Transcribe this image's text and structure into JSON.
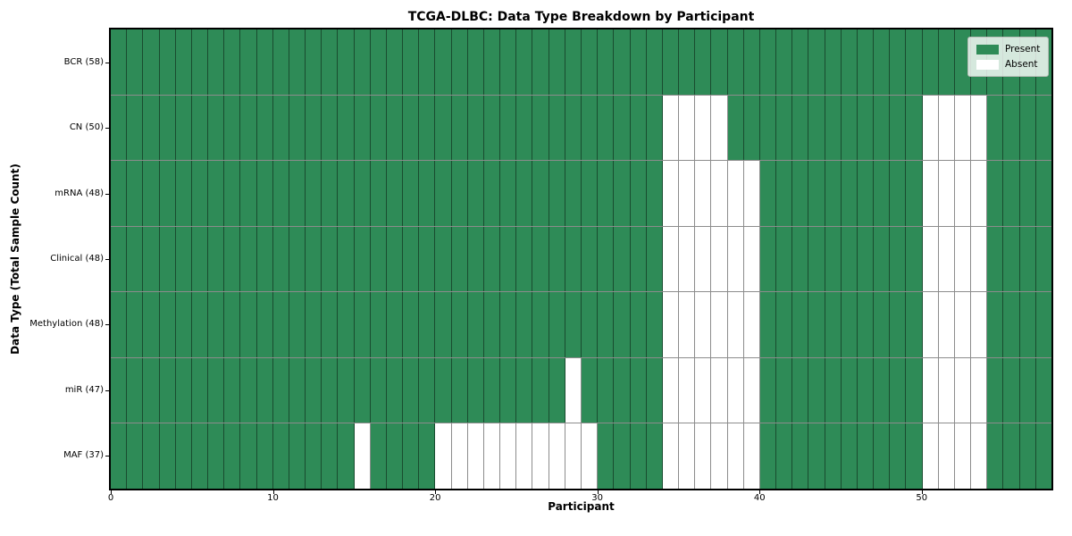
{
  "title": "TCGA-DLBC: Data Type Breakdown by Participant",
  "x_axis": {
    "label": "Participant",
    "ticks": [
      0,
      10,
      20,
      30,
      40,
      50
    ]
  },
  "y_axis": {
    "label": "Data Type (Total Sample Count)"
  },
  "legend": {
    "present_label": "Present",
    "absent_label": "Absent"
  },
  "colors": {
    "present": "#2e8b57",
    "absent": "#ffffff",
    "grid_line": "rgba(0,0,0,0.45)",
    "frame": "#000000",
    "legend_bg": "rgba(255,255,255,0.8)"
  },
  "chart_data": {
    "type": "heatmap",
    "title": "TCGA-DLBC: Data Type Breakdown by Participant",
    "xlabel": "Participant",
    "ylabel": "Data Type (Total Sample Count)",
    "x_range": [
      0,
      58
    ],
    "x_ticks": [
      0,
      10,
      20,
      30,
      40,
      50
    ],
    "n_participants": 58,
    "grid": true,
    "legend_position": "upper right",
    "legend_entries": [
      {
        "label": "Present",
        "color": "#2e8b57"
      },
      {
        "label": "Absent",
        "color": "#ffffff"
      }
    ],
    "rows": [
      {
        "data_type": "BCR",
        "total_samples": 58,
        "tick_label": "BCR (58)",
        "absent_participants": []
      },
      {
        "data_type": "CN",
        "total_samples": 50,
        "tick_label": "CN (50)",
        "absent_participants": [
          34,
          35,
          36,
          37,
          50,
          51,
          52,
          53
        ]
      },
      {
        "data_type": "mRNA",
        "total_samples": 48,
        "tick_label": "mRNA (48)",
        "absent_participants": [
          34,
          35,
          36,
          37,
          38,
          39,
          50,
          51,
          52,
          53
        ]
      },
      {
        "data_type": "Clinical",
        "total_samples": 48,
        "tick_label": "Clinical (48)",
        "absent_participants": [
          34,
          35,
          36,
          37,
          38,
          39,
          50,
          51,
          52,
          53
        ]
      },
      {
        "data_type": "Methylation",
        "total_samples": 48,
        "tick_label": "Methylation (48)",
        "absent_participants": [
          34,
          35,
          36,
          37,
          38,
          39,
          50,
          51,
          52,
          53
        ]
      },
      {
        "data_type": "miR",
        "total_samples": 47,
        "tick_label": "miR (47)",
        "absent_participants": [
          28,
          34,
          35,
          36,
          37,
          38,
          39,
          50,
          51,
          52,
          53
        ]
      },
      {
        "data_type": "MAF",
        "total_samples": 37,
        "tick_label": "MAF (37)",
        "absent_participants": [
          15,
          20,
          21,
          22,
          23,
          24,
          25,
          26,
          27,
          28,
          29,
          34,
          35,
          36,
          37,
          38,
          39,
          50,
          51,
          52,
          53
        ]
      }
    ]
  }
}
